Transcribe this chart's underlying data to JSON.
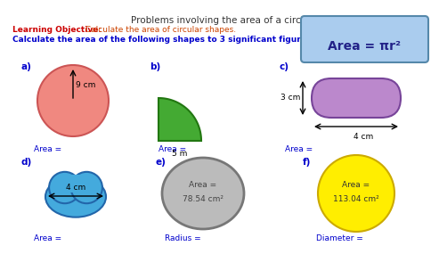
{
  "title": "Problems involving the area of a circle",
  "lo_prefix": "Learning Objective:",
  "lo_text": " Calculate the area of circular shapes.",
  "instruction": "Calculate the area of the following shapes to 3 significant figures.",
  "formula_text": "Area = πr²",
  "bg_color": "#ffffff",
  "title_color": "#333333",
  "lo_prefix_color": "#cc0000",
  "lo_text_color": "#cc4400",
  "instruction_color": "#0000cc",
  "formula_bg": "#aaccee",
  "formula_border": "#5588aa",
  "shapes": {
    "a": {
      "color": "#f08880",
      "border": "#cc5555",
      "radius_label": "9 cm",
      "answer_label": "Area ="
    },
    "b": {
      "color": "#44aa33",
      "border": "#227711",
      "dim_label": "5 m",
      "answer_label": "Area ="
    },
    "c": {
      "color": "#bb88cc",
      "border": "#774499",
      "w_label": "4 cm",
      "h_label": "3 cm",
      "answer_label": "Area ="
    },
    "d": {
      "color": "#44aadd",
      "border": "#2266aa",
      "dim_label": "4 cm",
      "answer_label": "Area ="
    },
    "e": {
      "color": "#bbbbbb",
      "border": "#777777",
      "inner_line1": "Area =",
      "inner_line2": "78.54 cm²",
      "answer_label": "Radius ="
    },
    "f": {
      "color": "#ffee00",
      "border": "#ccaa00",
      "inner_line1": "Area =",
      "inner_line2": "113.04 cm²",
      "answer_label": "Diameter ="
    }
  }
}
